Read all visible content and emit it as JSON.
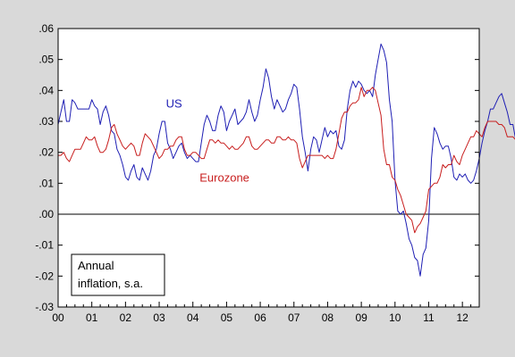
{
  "chart_data": {
    "type": "line",
    "x_start": 2000.0,
    "x_step": 0.08333,
    "xlim": [
      2000.0,
      2012.5
    ],
    "ylim": [
      -0.03,
      0.06
    ],
    "y_ticks": [
      ".06",
      ".05",
      ".04",
      ".03",
      ".02",
      ".01",
      ".00",
      "-.01",
      "-.02",
      "-.03"
    ],
    "y_tick_values": [
      0.06,
      0.05,
      0.04,
      0.03,
      0.02,
      0.01,
      0.0,
      -0.01,
      -0.02,
      -0.03
    ],
    "x_ticks": [
      "00",
      "01",
      "02",
      "03",
      "04",
      "05",
      "06",
      "07",
      "08",
      "09",
      "10",
      "11",
      "12"
    ],
    "zero_line": 0.0,
    "note": [
      "Annual",
      "inflation, s.a."
    ],
    "colors": {
      "background": "#d9d9d9",
      "plot": "#ffffff"
    },
    "series": [
      {
        "name": "US",
        "color": "#1f1fb4",
        "label_at": [
          2003.2,
          0.0345
        ],
        "values": [
          0.029,
          0.033,
          0.037,
          0.03,
          0.03,
          0.037,
          0.036,
          0.034,
          0.034,
          0.034,
          0.034,
          0.034,
          0.037,
          0.035,
          0.034,
          0.029,
          0.033,
          0.035,
          0.032,
          0.027,
          0.026,
          0.021,
          0.019,
          0.016,
          0.012,
          0.011,
          0.014,
          0.016,
          0.012,
          0.011,
          0.015,
          0.013,
          0.011,
          0.014,
          0.019,
          0.021,
          0.026,
          0.03,
          0.03,
          0.023,
          0.021,
          0.018,
          0.02,
          0.022,
          0.023,
          0.02,
          0.018,
          0.019,
          0.018,
          0.017,
          0.017,
          0.023,
          0.029,
          0.032,
          0.03,
          0.027,
          0.027,
          0.032,
          0.035,
          0.033,
          0.027,
          0.03,
          0.032,
          0.034,
          0.029,
          0.03,
          0.031,
          0.033,
          0.037,
          0.033,
          0.03,
          0.032,
          0.037,
          0.041,
          0.047,
          0.044,
          0.038,
          0.034,
          0.037,
          0.035,
          0.033,
          0.034,
          0.037,
          0.039,
          0.042,
          0.041,
          0.034,
          0.025,
          0.02,
          0.014,
          0.021,
          0.025,
          0.024,
          0.02,
          0.024,
          0.028,
          0.025,
          0.027,
          0.026,
          0.027,
          0.022,
          0.021,
          0.024,
          0.034,
          0.04,
          0.043,
          0.041,
          0.043,
          0.042,
          0.04,
          0.039,
          0.04,
          0.038,
          0.045,
          0.05,
          0.055,
          0.053,
          0.049,
          0.037,
          0.03,
          0.011,
          0.001,
          0.0,
          0.001,
          -0.003,
          -0.008,
          -0.01,
          -0.014,
          -0.015,
          -0.02,
          -0.013,
          -0.011,
          -0.002,
          0.018,
          0.028,
          0.026,
          0.023,
          0.021,
          0.022,
          0.022,
          0.018,
          0.012,
          0.011,
          0.013,
          0.012,
          0.013,
          0.011,
          0.01,
          0.011,
          0.014,
          0.018,
          0.023,
          0.027,
          0.03,
          0.034,
          0.034,
          0.036,
          0.038,
          0.039,
          0.036,
          0.033,
          0.029,
          0.029,
          0.024,
          0.024,
          0.017,
          0.017
        ]
      },
      {
        "name": "Eurozone",
        "color": "#c81e1e",
        "label_at": [
          2004.2,
          0.0105
        ],
        "values": [
          0.019,
          0.019,
          0.02,
          0.018,
          0.017,
          0.019,
          0.021,
          0.021,
          0.021,
          0.023,
          0.025,
          0.024,
          0.024,
          0.025,
          0.022,
          0.02,
          0.02,
          0.021,
          0.024,
          0.028,
          0.029,
          0.026,
          0.024,
          0.022,
          0.021,
          0.022,
          0.023,
          0.022,
          0.019,
          0.019,
          0.023,
          0.026,
          0.025,
          0.024,
          0.022,
          0.02,
          0.018,
          0.019,
          0.021,
          0.021,
          0.022,
          0.022,
          0.024,
          0.025,
          0.025,
          0.021,
          0.019,
          0.019,
          0.02,
          0.02,
          0.019,
          0.018,
          0.018,
          0.021,
          0.024,
          0.024,
          0.023,
          0.024,
          0.023,
          0.023,
          0.022,
          0.021,
          0.022,
          0.021,
          0.021,
          0.022,
          0.023,
          0.025,
          0.025,
          0.022,
          0.021,
          0.021,
          0.022,
          0.023,
          0.024,
          0.024,
          0.023,
          0.023,
          0.025,
          0.025,
          0.024,
          0.024,
          0.025,
          0.024,
          0.024,
          0.023,
          0.018,
          0.015,
          0.017,
          0.019,
          0.019,
          0.019,
          0.019,
          0.019,
          0.019,
          0.018,
          0.019,
          0.018,
          0.018,
          0.021,
          0.026,
          0.031,
          0.033,
          0.033,
          0.035,
          0.036,
          0.036,
          0.037,
          0.041,
          0.038,
          0.04,
          0.04,
          0.041,
          0.04,
          0.036,
          0.032,
          0.021,
          0.016,
          0.016,
          0.012,
          0.011,
          0.008,
          0.006,
          0.003,
          0.0,
          -0.001,
          -0.002,
          -0.006,
          -0.004,
          -0.003,
          -0.001,
          0.001,
          0.008,
          0.009,
          0.01,
          0.01,
          0.012,
          0.016,
          0.015,
          0.016,
          0.016,
          0.019,
          0.017,
          0.016,
          0.019,
          0.021,
          0.023,
          0.025,
          0.025,
          0.027,
          0.026,
          0.025,
          0.028,
          0.03,
          0.03,
          0.03,
          0.03,
          0.029,
          0.029,
          0.028,
          0.025,
          0.025,
          0.025,
          0.024,
          0.024,
          0.023,
          0.023
        ]
      }
    ]
  }
}
